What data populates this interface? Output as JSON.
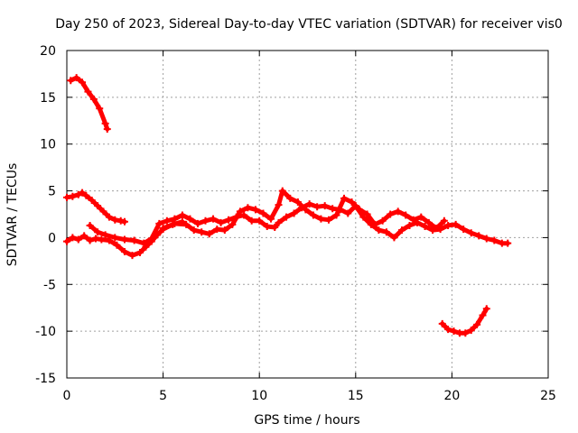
{
  "chart_data": {
    "type": "scatter",
    "title": "Day 250 of 2023, Sidereal Day-to-day VTEC variation (SDTVAR) for receiver vis0",
    "xlabel": "GPS time / hours",
    "ylabel": "SDTVAR / TECUs",
    "xlim": [
      0,
      25
    ],
    "ylim": [
      -15,
      20
    ],
    "xticks": [
      0,
      5,
      10,
      15,
      20,
      25
    ],
    "yticks": [
      -15,
      -10,
      -5,
      0,
      5,
      10,
      15,
      20
    ],
    "grid": true,
    "marker": "plus",
    "series_color": "#ff0000",
    "series": [
      {
        "name": "segment-high",
        "points": [
          [
            0.2,
            16.8
          ],
          [
            0.5,
            17.1
          ],
          [
            0.8,
            16.6
          ],
          [
            1.1,
            15.6
          ],
          [
            1.4,
            14.8
          ],
          [
            1.7,
            13.8
          ],
          [
            2.0,
            12.2
          ],
          [
            2.1,
            11.6
          ]
        ]
      },
      {
        "name": "segment-upper",
        "points": [
          [
            0.0,
            4.3
          ],
          [
            0.3,
            4.4
          ],
          [
            0.6,
            4.6
          ],
          [
            0.8,
            4.8
          ],
          [
            1.0,
            4.5
          ],
          [
            1.3,
            4.0
          ],
          [
            1.6,
            3.4
          ],
          [
            1.9,
            2.8
          ],
          [
            2.2,
            2.2
          ],
          [
            2.5,
            1.9
          ],
          [
            2.8,
            1.8
          ],
          [
            3.0,
            1.7
          ]
        ]
      },
      {
        "name": "segment-lower-start",
        "points": [
          [
            0.0,
            -0.4
          ],
          [
            0.3,
            0.0
          ],
          [
            0.6,
            -0.2
          ],
          [
            0.9,
            0.2
          ],
          [
            1.2,
            -0.3
          ],
          [
            1.5,
            -0.1
          ],
          [
            1.8,
            -0.2
          ],
          [
            2.2,
            -0.3
          ],
          [
            2.6,
            -0.8
          ],
          [
            3.0,
            -1.5
          ],
          [
            3.4,
            -1.9
          ],
          [
            3.8,
            -1.6
          ],
          [
            4.1,
            -1.0
          ],
          [
            4.4,
            -0.4
          ],
          [
            4.7,
            0.3
          ],
          [
            5.0,
            0.9
          ],
          [
            5.5,
            1.4
          ],
          [
            6.0,
            1.7
          ]
        ]
      },
      {
        "name": "segment-mid-band",
        "points": [
          [
            1.2,
            1.3
          ],
          [
            1.6,
            0.6
          ],
          [
            2.0,
            0.3
          ],
          [
            2.5,
            0.0
          ],
          [
            3.0,
            -0.2
          ],
          [
            3.5,
            -0.3
          ],
          [
            4.0,
            -0.6
          ],
          [
            4.4,
            -0.1
          ],
          [
            4.8,
            1.5
          ],
          [
            5.2,
            1.8
          ],
          [
            5.6,
            2.0
          ],
          [
            6.0,
            2.4
          ],
          [
            6.4,
            2.0
          ],
          [
            6.8,
            1.5
          ],
          [
            7.2,
            1.8
          ],
          [
            7.6,
            2.0
          ],
          [
            8.0,
            1.6
          ],
          [
            8.4,
            1.9
          ],
          [
            8.8,
            2.2
          ],
          [
            9.2,
            2.4
          ],
          [
            9.6,
            1.8
          ],
          [
            10.0,
            1.8
          ],
          [
            10.4,
            1.2
          ],
          [
            10.8,
            1.1
          ],
          [
            11.0,
            1.6
          ],
          [
            11.4,
            2.2
          ],
          [
            11.8,
            2.6
          ],
          [
            12.2,
            3.2
          ],
          [
            12.6,
            3.6
          ],
          [
            13.0,
            3.3
          ],
          [
            13.4,
            3.4
          ],
          [
            13.8,
            3.1
          ],
          [
            14.2,
            3.0
          ],
          [
            14.6,
            2.6
          ],
          [
            15.0,
            3.4
          ],
          [
            15.4,
            2.2
          ],
          [
            15.8,
            1.4
          ],
          [
            16.2,
            0.8
          ],
          [
            16.6,
            0.6
          ],
          [
            17.0,
            0.0
          ],
          [
            17.4,
            0.8
          ],
          [
            17.8,
            1.3
          ],
          [
            18.2,
            1.6
          ],
          [
            18.6,
            1.2
          ],
          [
            19.0,
            0.8
          ],
          [
            19.4,
            0.9
          ],
          [
            19.8,
            1.3
          ],
          [
            20.2,
            1.4
          ],
          [
            20.6,
            0.9
          ],
          [
            21.0,
            0.5
          ],
          [
            21.4,
            0.2
          ],
          [
            21.8,
            -0.1
          ],
          [
            22.2,
            -0.3
          ],
          [
            22.6,
            -0.6
          ],
          [
            22.9,
            -0.6
          ]
        ]
      },
      {
        "name": "segment-mid-band-upper",
        "points": [
          [
            5.0,
            1.0
          ],
          [
            5.6,
            1.5
          ],
          [
            6.2,
            1.4
          ],
          [
            6.6,
            0.8
          ],
          [
            7.0,
            0.6
          ],
          [
            7.4,
            0.4
          ],
          [
            7.8,
            0.9
          ],
          [
            8.2,
            0.8
          ],
          [
            8.6,
            1.4
          ],
          [
            9.0,
            2.8
          ],
          [
            9.4,
            3.2
          ],
          [
            9.8,
            3.0
          ],
          [
            10.2,
            2.6
          ],
          [
            10.6,
            2.0
          ],
          [
            11.0,
            3.5
          ],
          [
            11.2,
            5.0
          ],
          [
            11.6,
            4.2
          ],
          [
            12.0,
            3.8
          ],
          [
            12.4,
            3.0
          ],
          [
            12.8,
            2.4
          ],
          [
            13.2,
            2.0
          ],
          [
            13.6,
            1.9
          ],
          [
            14.0,
            2.4
          ],
          [
            14.4,
            4.2
          ],
          [
            14.8,
            3.8
          ],
          [
            15.2,
            3.0
          ],
          [
            15.6,
            2.5
          ],
          [
            16.0,
            1.4
          ],
          [
            16.4,
            1.8
          ],
          [
            16.8,
            2.5
          ],
          [
            17.2,
            2.8
          ],
          [
            17.6,
            2.4
          ],
          [
            18.0,
            1.9
          ],
          [
            18.4,
            2.2
          ],
          [
            18.8,
            1.6
          ],
          [
            19.2,
            1.0
          ],
          [
            19.6,
            1.8
          ]
        ]
      },
      {
        "name": "segment-low",
        "points": [
          [
            19.5,
            -9.2
          ],
          [
            19.8,
            -9.8
          ],
          [
            20.1,
            -10.0
          ],
          [
            20.4,
            -10.2
          ],
          [
            20.7,
            -10.2
          ],
          [
            21.0,
            -9.9
          ],
          [
            21.3,
            -9.3
          ],
          [
            21.6,
            -8.3
          ],
          [
            21.8,
            -7.6
          ]
        ]
      }
    ]
  }
}
